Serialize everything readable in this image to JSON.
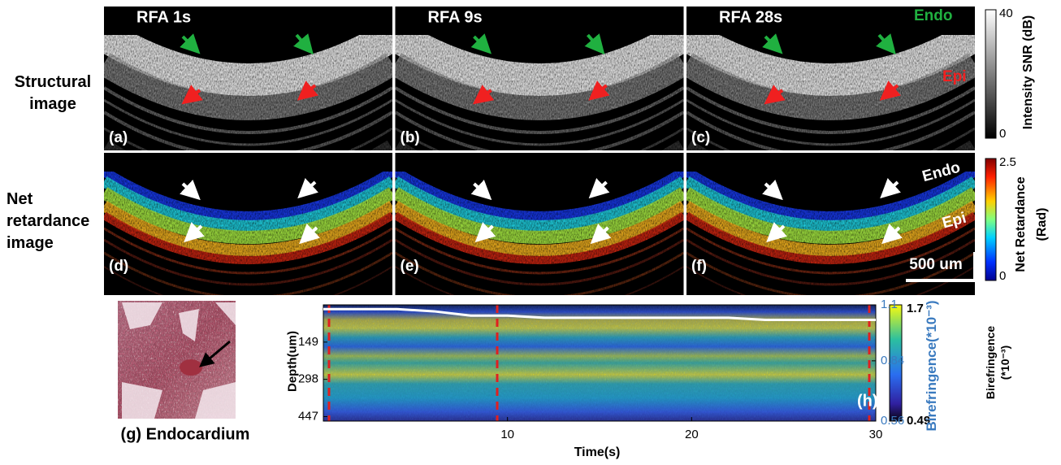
{
  "structural": {
    "row_label": "Structural image",
    "panels": [
      {
        "title": "RFA 1s",
        "label": "(a)"
      },
      {
        "title": "RFA 9s",
        "label": "(b)"
      },
      {
        "title": "RFA 28s",
        "label": "(c)"
      }
    ],
    "annotations": [
      "Endo",
      "Epi"
    ],
    "colorbar": {
      "label": "Intensity SNR (dB)",
      "ticks": [
        40,
        0
      ]
    }
  },
  "retardance": {
    "row_label": "Net retardance image",
    "labels": [
      "(d)",
      "(e)",
      "(f)"
    ],
    "annotations": [
      "Endo",
      "Epi"
    ],
    "colorbar": {
      "label": "Net Retardance (Rad)",
      "ticks": [
        2.5,
        0
      ]
    },
    "scale_bar": "500 um"
  },
  "photo_caption": "(g) Endocardium",
  "chart_data": {
    "type": "line",
    "title": "(h)",
    "xlabel": "Time(s)",
    "ylabel": "Depth(um)",
    "y2label": "Birefringence(*10⁻³)",
    "x": [
      0,
      2,
      4,
      6,
      8,
      10,
      12,
      14,
      16,
      18,
      20,
      22,
      24,
      26,
      28,
      30
    ],
    "series": [
      {
        "color": "#ffffff",
        "axis": "y2",
        "values": [
          1.08,
          1.08,
          1.08,
          1.07,
          1.05,
          1.05,
          1.04,
          1.04,
          1.04,
          1.04,
          1.04,
          1.04,
          1.03,
          1.03,
          1.03,
          1.03
        ]
      }
    ],
    "xlim": [
      0,
      30
    ],
    "xticks": [
      10,
      20,
      30
    ],
    "ylim": [
      0,
      465
    ],
    "yticks": [
      149,
      298,
      447
    ],
    "y_inverted": true,
    "y2lim": [
      0.56,
      1.1
    ],
    "y2ticks": [
      1.1,
      0.84,
      0.56
    ],
    "colorbar": {
      "label": "Birefringence (*10⁻³)",
      "ticks": [
        1.7,
        0.49
      ]
    }
  }
}
